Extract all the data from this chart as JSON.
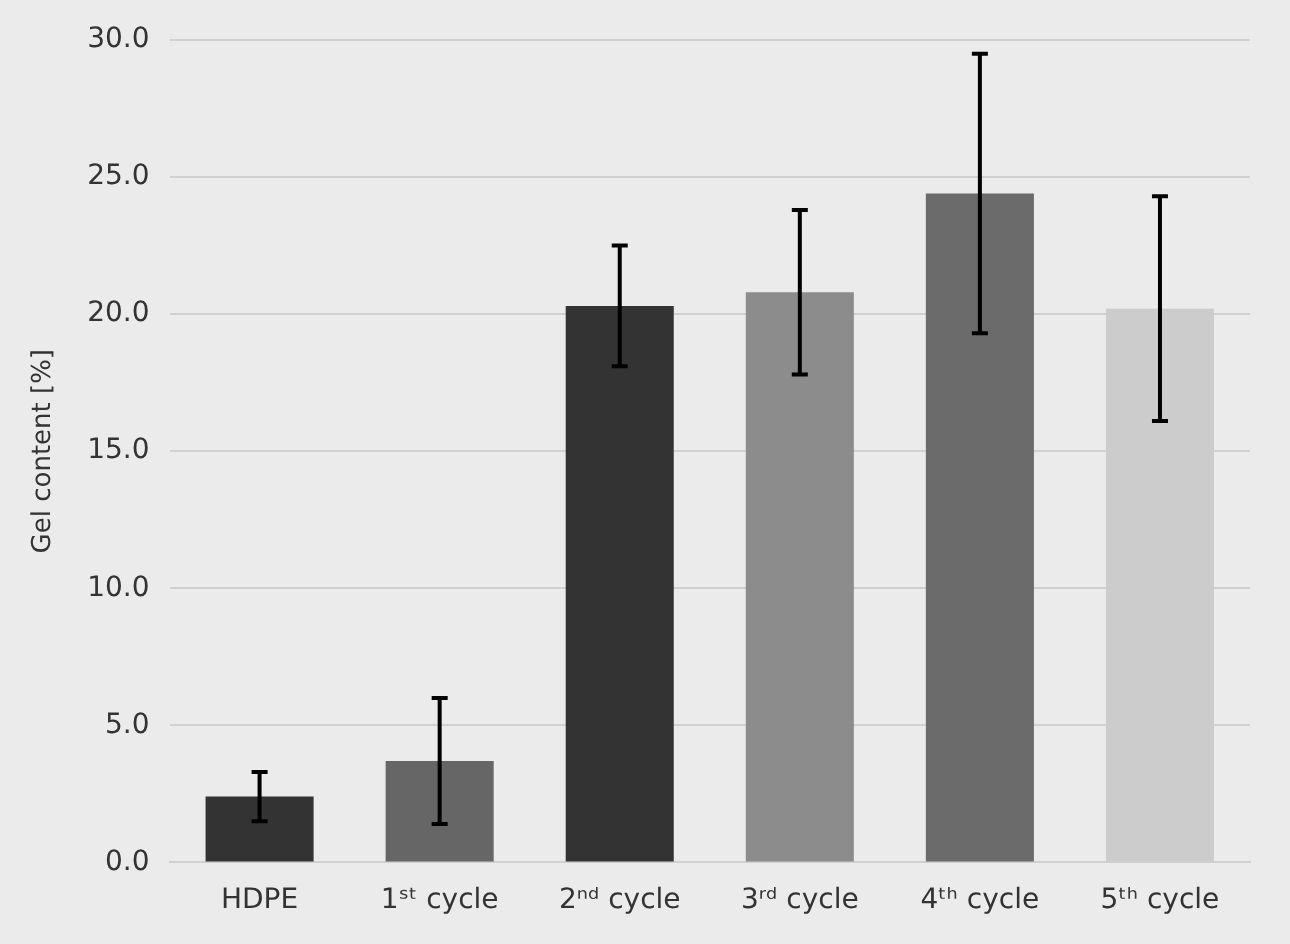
{
  "chart_data": {
    "type": "bar",
    "ylabel": "Gel content [%]",
    "categories": [
      "HDPE",
      "1ˢᵗ cycle",
      "2ⁿᵈ cycle",
      "3ʳᵈ cycle",
      "4ᵗʰ cycle",
      "5ᵗʰ cycle"
    ],
    "values": [
      2.4,
      3.7,
      20.3,
      20.8,
      24.4,
      20.2
    ],
    "errors": [
      0.9,
      2.3,
      2.2,
      3.0,
      5.1,
      4.1
    ],
    "colors": [
      "#333333",
      "#666666",
      "#333333",
      "#8c8c8c",
      "#6b6b6b",
      "#cccccc"
    ],
    "ylim": [
      0,
      30
    ],
    "yticks": [
      {
        "value": 0,
        "label": "0.0"
      },
      {
        "value": 5,
        "label": "5.0"
      },
      {
        "value": 10,
        "label": "10.0"
      },
      {
        "value": 15,
        "label": "15.0"
      },
      {
        "value": 20,
        "label": "20.0"
      },
      {
        "value": 25,
        "label": "25.0"
      },
      {
        "value": 30,
        "label": "30.0"
      }
    ],
    "grid": "y",
    "legend": false
  }
}
